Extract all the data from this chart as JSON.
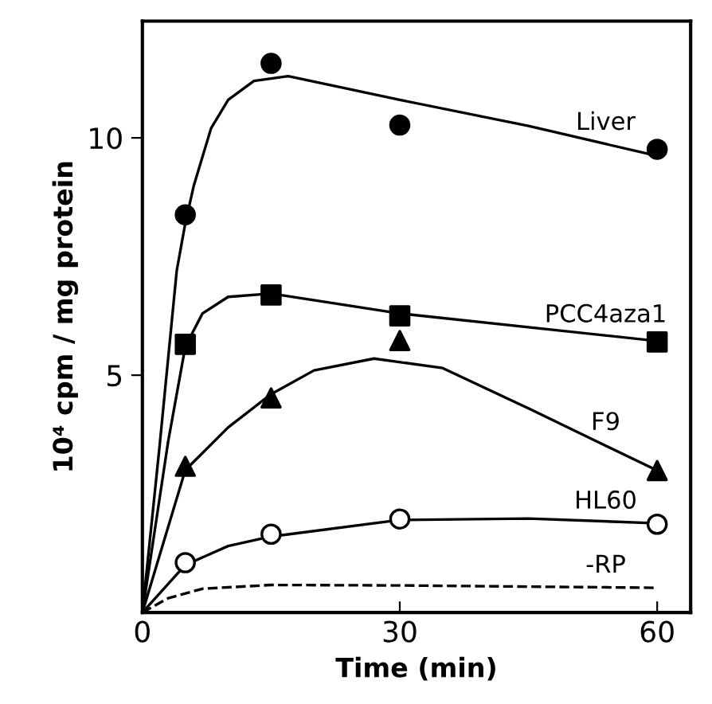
{
  "chart_data": {
    "type": "scatter",
    "xlabel": "Time (min)",
    "ylabel": "10⁴ cpm / mg protein",
    "xlim": [
      0,
      63.9
    ],
    "ylim": [
      0,
      12.46
    ],
    "xticks": [
      0,
      30,
      60
    ],
    "yticks": [
      5,
      10
    ],
    "grid": false,
    "legend": false,
    "series": [
      {
        "type": "line",
        "color": "#000000",
        "x": [
          0,
          2,
          4,
          5,
          6,
          8,
          10,
          13,
          17,
          30,
          45,
          60
        ],
        "values": [
          0,
          3.5,
          7.2,
          8.2,
          9.0,
          10.2,
          10.8,
          11.2,
          11.3,
          10.8,
          10.25,
          9.62
        ]
      },
      {
        "type": "scatter",
        "name": "Liver",
        "marker": "circle",
        "color": "#000000",
        "x": [
          5,
          15,
          30,
          60
        ],
        "values": [
          8.38,
          11.57,
          10.27,
          9.76
        ]
      },
      {
        "type": "line",
        "color": "#000000",
        "x": [
          0,
          3,
          5,
          7,
          10,
          15,
          30,
          60
        ],
        "values": [
          0,
          3.6,
          5.6,
          6.3,
          6.65,
          6.72,
          6.3,
          5.72
        ]
      },
      {
        "type": "scatter",
        "name": "PCC4aza1",
        "marker": "square",
        "color": "#000000",
        "x": [
          5,
          15,
          30,
          60
        ],
        "values": [
          5.65,
          6.69,
          6.25,
          5.7
        ]
      },
      {
        "type": "line",
        "color": "#000000",
        "x": [
          0,
          5,
          10,
          15,
          20,
          27,
          35,
          45,
          53,
          60
        ],
        "values": [
          0,
          3.0,
          3.9,
          4.6,
          5.1,
          5.35,
          5.15,
          4.3,
          3.6,
          2.99
        ]
      },
      {
        "type": "scatter",
        "name": "F9",
        "marker": "triangle",
        "color": "#000000",
        "x": [
          5,
          15,
          30,
          60
        ],
        "values": [
          3.08,
          4.52,
          5.73,
          2.99
        ]
      },
      {
        "type": "line",
        "color": "#000000",
        "x": [
          0,
          5,
          10,
          15,
          30,
          45,
          60
        ],
        "values": [
          0,
          1.0,
          1.4,
          1.6,
          1.95,
          1.98,
          1.88
        ]
      },
      {
        "type": "scatter",
        "name": "HL60",
        "marker": "circle",
        "color": "#ffffff",
        "x": [
          5,
          15,
          30,
          60
        ],
        "values": [
          1.05,
          1.65,
          1.97,
          1.86
        ]
      },
      {
        "type": "line",
        "name": "-RP",
        "line_style": "dashed",
        "color": "#000000",
        "x": [
          0,
          3,
          7,
          15,
          30,
          60
        ],
        "values": [
          0,
          0.3,
          0.5,
          0.58,
          0.57,
          0.52
        ]
      }
    ]
  }
}
